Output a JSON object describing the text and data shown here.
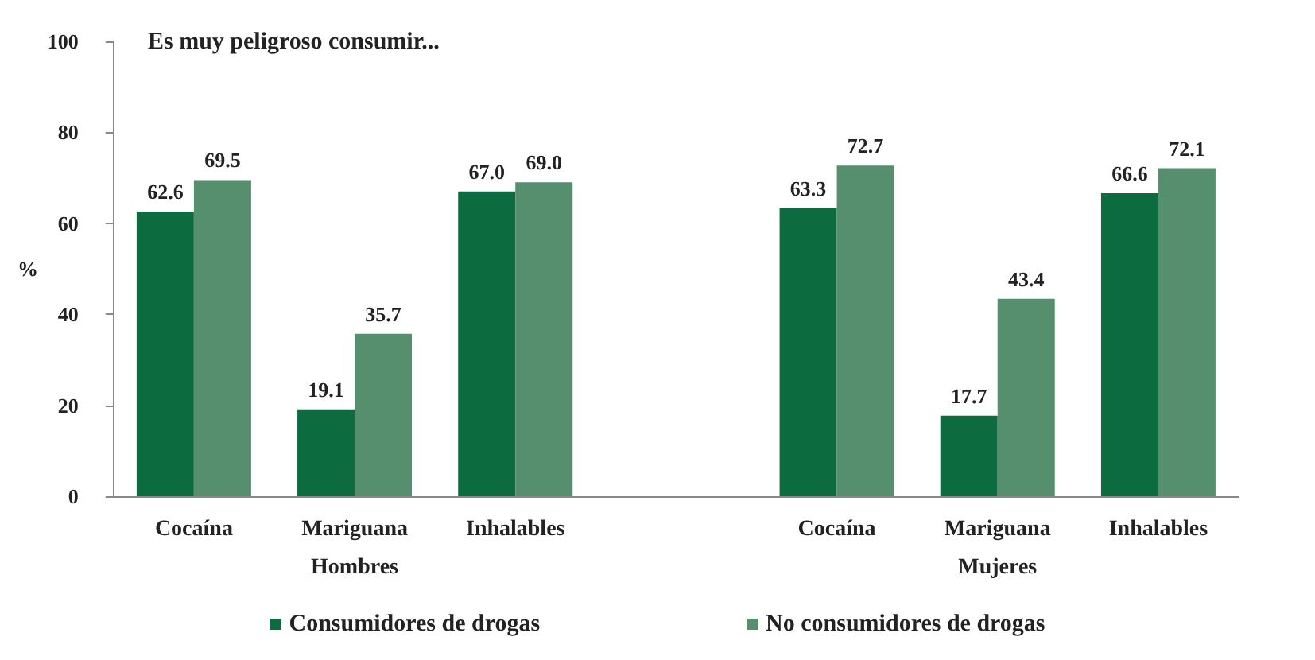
{
  "chart_data": {
    "type": "bar",
    "title": "Es muy peligroso consumir...",
    "ylabel": "%",
    "categories": [
      "Cocaína",
      "Mariguana",
      "Inhalables",
      null,
      "Cocaína",
      "Mariguana",
      "Inhalables"
    ],
    "series": [
      {
        "name": "Consumidores de drogas",
        "color": "#0d6b40",
        "values": [
          62.6,
          19.1,
          67.0,
          null,
          63.3,
          17.7,
          66.6
        ],
        "value_labels": [
          "62.6",
          "19.1",
          "67.0",
          null,
          "63.3",
          "17.7",
          "66.6"
        ]
      },
      {
        "name": "No consumidores de drogas",
        "color": "#568f6d",
        "values": [
          69.5,
          35.7,
          69.0,
          null,
          72.7,
          43.4,
          72.1
        ],
        "value_labels": [
          "69.5",
          "35.7",
          "69.0",
          null,
          "72.7",
          "43.4",
          "72.1"
        ]
      }
    ],
    "ylim": [
      0,
      100
    ],
    "yticks": [
      0,
      20,
      40,
      60,
      80,
      100
    ],
    "grid": false,
    "legend": "bottom",
    "annotations": [
      "Hombres",
      "Mujeres"
    ]
  }
}
